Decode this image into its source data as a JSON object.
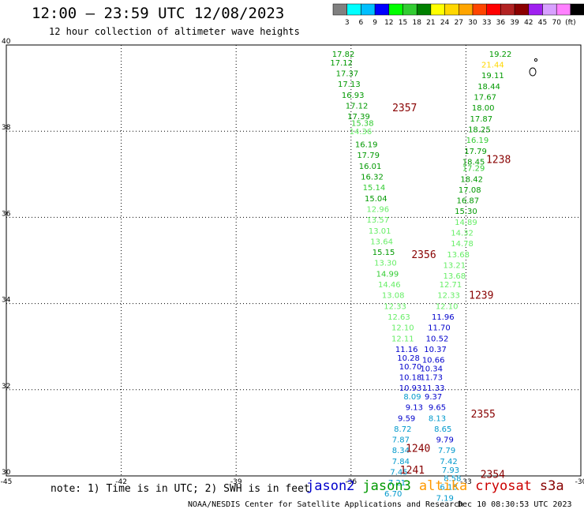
{
  "header": {
    "title": "12:00 – 23:59 UTC 12/08/2023",
    "subtitle": "12 hour collection of altimeter wave heights"
  },
  "colorbar": {
    "ticks": [
      "3",
      "6",
      "9",
      "12",
      "15",
      "18",
      "21",
      "24",
      "27",
      "30",
      "33",
      "36",
      "39",
      "42",
      "45",
      "70",
      "(ft)"
    ],
    "colors": [
      "#808080",
      "#00ffff",
      "#00bfff",
      "#0000ff",
      "#00ff00",
      "#32cd32",
      "#008000",
      "#ffff00",
      "#ffd700",
      "#ffa500",
      "#ff4500",
      "#ff0000",
      "#b22222",
      "#8b0000",
      "#a020f0",
      "#d8a0ff",
      "#ff80ff",
      "#000000"
    ]
  },
  "footer": {
    "note": "note: 1) Time is in UTC; 2) SWH is in feet",
    "credit": "NOAA/NESDIS Center for Satellite Applications and Research",
    "timestamp": "Dec 10 08:30:53 UTC 2023",
    "legend": [
      {
        "name": "jason2",
        "color": "#0000cc"
      },
      {
        "name": "jason3",
        "color": "#009900"
      },
      {
        "name": "altika",
        "color": "#ff9900"
      },
      {
        "name": "cryosat",
        "color": "#cc0000"
      },
      {
        "name": "s3a",
        "color": "#880000"
      }
    ]
  },
  "chart_data": {
    "type": "scatter",
    "title": "12:00 – 23:59 UTC 12/08/2023",
    "subtitle": "12 hour collection of altimeter wave heights",
    "xlabel": "",
    "ylabel": "",
    "xlim": [
      -45,
      -30
    ],
    "ylim": [
      30,
      40
    ],
    "x_ticks": [
      "-45",
      "-42",
      "-39",
      "-36",
      "-33",
      "-30"
    ],
    "y_ticks": [
      "30",
      "32",
      "34",
      "36",
      "38",
      "40"
    ],
    "grid": true,
    "units": "ft",
    "time_labels": [
      {
        "text": "2357",
        "x": -34.6,
        "y": 38.55
      },
      {
        "text": "1238",
        "x": -32.15,
        "y": 37.35
      },
      {
        "text": "2356",
        "x": -34.1,
        "y": 35.15
      },
      {
        "text": "1239",
        "x": -32.6,
        "y": 34.2
      },
      {
        "text": "2355",
        "x": -32.55,
        "y": 31.45
      },
      {
        "text": "1240",
        "x": -34.25,
        "y": 30.65
      },
      {
        "text": "1241",
        "x": -34.4,
        "y": 30.15
      },
      {
        "text": "2354",
        "x": -32.3,
        "y": 30.05
      }
    ],
    "series": [
      {
        "name": "track-west",
        "values": [
          {
            "x": -36.2,
            "y": 39.8,
            "v": "17.82",
            "c": "#009900"
          },
          {
            "x": -36.25,
            "y": 39.6,
            "v": "17.12",
            "c": "#009900"
          },
          {
            "x": -36.1,
            "y": 39.35,
            "v": "17.37",
            "c": "#009900"
          },
          {
            "x": -36.05,
            "y": 39.1,
            "v": "17.13",
            "c": "#009900"
          },
          {
            "x": -35.95,
            "y": 38.85,
            "v": "16.93",
            "c": "#009900"
          },
          {
            "x": -35.85,
            "y": 38.6,
            "v": "17.12",
            "c": "#009900"
          },
          {
            "x": -35.8,
            "y": 38.35,
            "v": "17.39",
            "c": "#009900"
          },
          {
            "x": -35.7,
            "y": 38.2,
            "v": "15.38",
            "c": "#33cc33"
          },
          {
            "x": -35.75,
            "y": 38.0,
            "v": "14.36",
            "c": "#66ee66"
          },
          {
            "x": -35.6,
            "y": 37.7,
            "v": "16.19",
            "c": "#009900"
          },
          {
            "x": -35.55,
            "y": 37.45,
            "v": "17.79",
            "c": "#009900"
          },
          {
            "x": -35.5,
            "y": 37.2,
            "v": "16.01",
            "c": "#009900"
          },
          {
            "x": -35.45,
            "y": 36.95,
            "v": "16.32",
            "c": "#009900"
          },
          {
            "x": -35.4,
            "y": 36.7,
            "v": "15.14",
            "c": "#33cc33"
          },
          {
            "x": -35.35,
            "y": 36.45,
            "v": "15.04",
            "c": "#009900"
          },
          {
            "x": -35.3,
            "y": 36.2,
            "v": "12.96",
            "c": "#66ee66"
          },
          {
            "x": -35.3,
            "y": 35.95,
            "v": "13.57",
            "c": "#66ee66"
          },
          {
            "x": -35.25,
            "y": 35.7,
            "v": "13.01",
            "c": "#66ee66"
          },
          {
            "x": -35.2,
            "y": 35.45,
            "v": "13.64",
            "c": "#66ee66"
          },
          {
            "x": -35.15,
            "y": 35.2,
            "v": "15.15",
            "c": "#009900"
          },
          {
            "x": -35.1,
            "y": 34.95,
            "v": "13.30",
            "c": "#66ee66"
          },
          {
            "x": -35.05,
            "y": 34.7,
            "v": "14.99",
            "c": "#33cc33"
          },
          {
            "x": -35.0,
            "y": 34.45,
            "v": "14.46",
            "c": "#66ee66"
          },
          {
            "x": -34.9,
            "y": 34.2,
            "v": "13.08",
            "c": "#66ee66"
          },
          {
            "x": -34.85,
            "y": 33.95,
            "v": "12.33",
            "c": "#66ee66"
          },
          {
            "x": -34.75,
            "y": 33.7,
            "v": "12.63",
            "c": "#66ee66"
          },
          {
            "x": -34.65,
            "y": 33.45,
            "v": "12.10",
            "c": "#66ee66"
          },
          {
            "x": -34.65,
            "y": 33.2,
            "v": "12.11",
            "c": "#66ee66"
          },
          {
            "x": -34.55,
            "y": 32.95,
            "v": "11.16",
            "c": "#0000cc"
          },
          {
            "x": -34.5,
            "y": 32.75,
            "v": "10.28",
            "c": "#0000cc"
          },
          {
            "x": -34.45,
            "y": 32.55,
            "v": "10.70",
            "c": "#0000cc"
          },
          {
            "x": -34.45,
            "y": 32.3,
            "v": "10.18",
            "c": "#0000cc"
          },
          {
            "x": -34.45,
            "y": 32.05,
            "v": "10.93",
            "c": "#0000cc"
          },
          {
            "x": -34.4,
            "y": 31.85,
            "v": "8.09",
            "c": "#0099cc"
          },
          {
            "x": -34.35,
            "y": 31.6,
            "v": "9.13",
            "c": "#0000cc"
          },
          {
            "x": -34.55,
            "y": 31.35,
            "v": "9.59",
            "c": "#0000cc"
          },
          {
            "x": -34.65,
            "y": 31.1,
            "v": "8.72",
            "c": "#0099cc"
          },
          {
            "x": -34.7,
            "y": 30.85,
            "v": "7.87",
            "c": "#0099cc"
          },
          {
            "x": -34.7,
            "y": 30.6,
            "v": "8.34",
            "c": "#0099cc"
          },
          {
            "x": -34.7,
            "y": 30.35,
            "v": "7.84",
            "c": "#0099cc"
          },
          {
            "x": -34.75,
            "y": 30.1,
            "v": "7.45",
            "c": "#0099cc"
          },
          {
            "x": -34.8,
            "y": 29.85,
            "v": "7.21",
            "c": "#0099cc"
          },
          {
            "x": -34.9,
            "y": 29.6,
            "v": "6.70",
            "c": "#0099cc"
          }
        ]
      },
      {
        "name": "track-east",
        "values": [
          {
            "x": -32.1,
            "y": 39.8,
            "v": "19.22",
            "c": "#009900"
          },
          {
            "x": -32.3,
            "y": 39.55,
            "v": "21.44",
            "c": "#ffd700"
          },
          {
            "x": -32.3,
            "y": 39.3,
            "v": "19.11",
            "c": "#009900"
          },
          {
            "x": -32.4,
            "y": 39.05,
            "v": "18.44",
            "c": "#009900"
          },
          {
            "x": -32.5,
            "y": 38.8,
            "v": "17.67",
            "c": "#009900"
          },
          {
            "x": -32.55,
            "y": 38.55,
            "v": "18.00",
            "c": "#009900"
          },
          {
            "x": -32.6,
            "y": 38.3,
            "v": "17.87",
            "c": "#009900"
          },
          {
            "x": -32.65,
            "y": 38.05,
            "v": "18.25",
            "c": "#009900"
          },
          {
            "x": -32.7,
            "y": 37.8,
            "v": "16.19",
            "c": "#33cc33"
          },
          {
            "x": -32.75,
            "y": 37.55,
            "v": "17.79",
            "c": "#009900"
          },
          {
            "x": -32.8,
            "y": 37.3,
            "v": "18.45",
            "c": "#009900"
          },
          {
            "x": -32.8,
            "y": 37.15,
            "v": "17.29",
            "c": "#33cc33"
          },
          {
            "x": -32.85,
            "y": 36.9,
            "v": "18.42",
            "c": "#009900"
          },
          {
            "x": -32.9,
            "y": 36.65,
            "v": "17.08",
            "c": "#009900"
          },
          {
            "x": -32.95,
            "y": 36.4,
            "v": "16.87",
            "c": "#009900"
          },
          {
            "x": -33.0,
            "y": 36.15,
            "v": "15.30",
            "c": "#009900"
          },
          {
            "x": -33.0,
            "y": 35.9,
            "v": "14.89",
            "c": "#66ee66"
          },
          {
            "x": -33.1,
            "y": 35.65,
            "v": "14.32",
            "c": "#66ee66"
          },
          {
            "x": -33.1,
            "y": 35.4,
            "v": "14.78",
            "c": "#66ee66"
          },
          {
            "x": -33.2,
            "y": 35.15,
            "v": "13.68",
            "c": "#66ee66"
          },
          {
            "x": -33.3,
            "y": 34.9,
            "v": "13.21",
            "c": "#66ee66"
          },
          {
            "x": -33.3,
            "y": 34.65,
            "v": "13.68",
            "c": "#66ee66"
          },
          {
            "x": -33.4,
            "y": 34.45,
            "v": "12.71",
            "c": "#66ee66"
          },
          {
            "x": -33.45,
            "y": 34.2,
            "v": "12.33",
            "c": "#66ee66"
          },
          {
            "x": -33.5,
            "y": 33.95,
            "v": "12.10",
            "c": "#66ee66"
          },
          {
            "x": -33.6,
            "y": 33.7,
            "v": "11.96",
            "c": "#0000cc"
          },
          {
            "x": -33.7,
            "y": 33.45,
            "v": "11.70",
            "c": "#0000cc"
          },
          {
            "x": -33.75,
            "y": 33.2,
            "v": "10.52",
            "c": "#0000cc"
          },
          {
            "x": -33.8,
            "y": 32.95,
            "v": "10.37",
            "c": "#0000cc"
          },
          {
            "x": -33.85,
            "y": 32.7,
            "v": "10.66",
            "c": "#0000cc"
          },
          {
            "x": -33.9,
            "y": 32.5,
            "v": "10.34",
            "c": "#0000cc"
          },
          {
            "x": -33.9,
            "y": 32.3,
            "v": "11.73",
            "c": "#0000cc"
          },
          {
            "x": -33.85,
            "y": 32.05,
            "v": "11.33",
            "c": "#0000cc"
          },
          {
            "x": -33.85,
            "y": 31.85,
            "v": "9.37",
            "c": "#0000cc"
          },
          {
            "x": -33.75,
            "y": 31.6,
            "v": "9.65",
            "c": "#0000cc"
          },
          {
            "x": -33.75,
            "y": 31.35,
            "v": "8.13",
            "c": "#0099cc"
          },
          {
            "x": -33.6,
            "y": 31.1,
            "v": "8.65",
            "c": "#0099cc"
          },
          {
            "x": -33.55,
            "y": 30.85,
            "v": "9.79",
            "c": "#0000cc"
          },
          {
            "x": -33.5,
            "y": 30.6,
            "v": "7.79",
            "c": "#0099cc"
          },
          {
            "x": -33.45,
            "y": 30.35,
            "v": "7.42",
            "c": "#0099cc"
          },
          {
            "x": -33.4,
            "y": 30.15,
            "v": "7.93",
            "c": "#0099cc"
          },
          {
            "x": -33.35,
            "y": 29.95,
            "v": "8.58",
            "c": "#0099cc"
          },
          {
            "x": -33.45,
            "y": 29.75,
            "v": "6.18",
            "c": "#0099cc"
          },
          {
            "x": -33.55,
            "y": 29.5,
            "v": "7.19",
            "c": "#0099cc"
          }
        ]
      }
    ]
  }
}
